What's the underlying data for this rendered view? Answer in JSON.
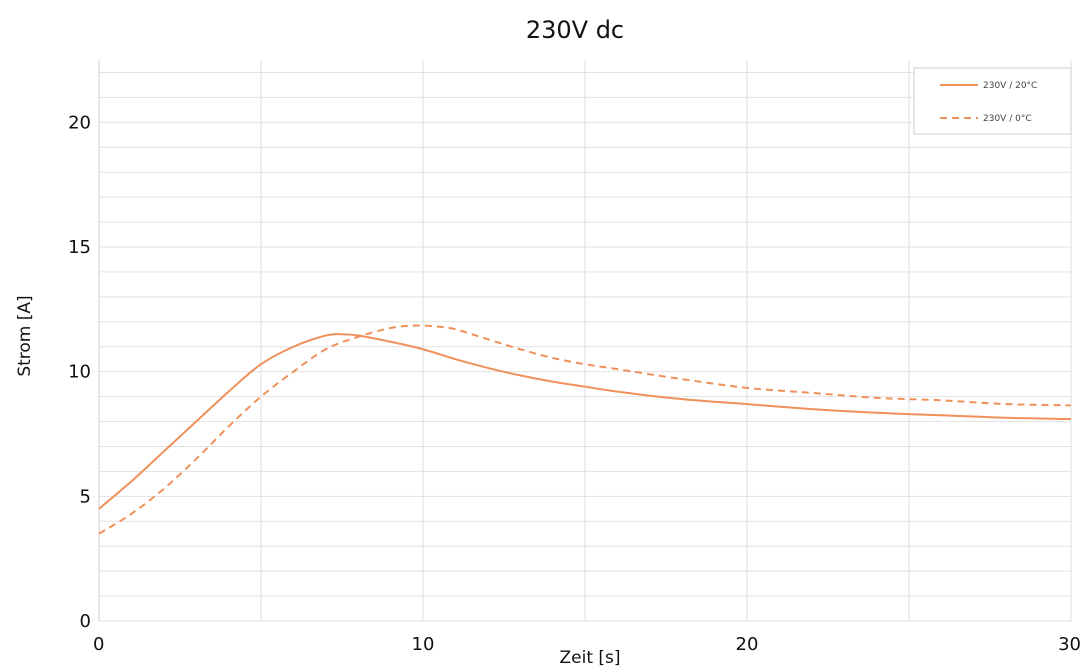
{
  "chart_data": {
    "type": "line",
    "title": "230V dc",
    "xlabel": "Zeit [s]",
    "ylabel": "Strom [A]",
    "xlim": [
      0,
      30
    ],
    "ylim": [
      0,
      22.5
    ],
    "x_ticks": [
      0,
      10,
      20,
      30
    ],
    "x_tick_labels": [
      "0",
      "10",
      "20",
      "30"
    ],
    "y_ticks": [
      0,
      5,
      10,
      15,
      20
    ],
    "y_tick_labels": [
      "0",
      "5",
      "10",
      "15",
      "20"
    ],
    "grid": true,
    "legend_position": "top-right",
    "series": [
      {
        "name": "230V / 20°C",
        "style": "solid",
        "color": "#F0905A",
        "x": [
          0,
          1,
          2,
          3,
          4,
          5,
          6,
          7,
          7.5,
          8,
          9,
          10,
          11,
          12,
          13,
          14,
          15,
          16,
          18,
          20,
          22,
          24,
          26,
          28,
          30
        ],
        "y": [
          4.5,
          5.6,
          6.8,
          8.0,
          9.2,
          10.3,
          11.0,
          11.45,
          11.5,
          11.45,
          11.2,
          10.9,
          10.5,
          10.15,
          9.85,
          9.6,
          9.4,
          9.2,
          8.9,
          8.7,
          8.5,
          8.35,
          8.25,
          8.15,
          8.1
        ]
      },
      {
        "name": "230V / 0°C",
        "style": "dashed",
        "color": "#F0905A",
        "x": [
          0,
          1,
          2,
          3,
          4,
          5,
          6,
          7,
          8,
          9,
          9.8,
          10.5,
          11,
          12,
          13,
          14,
          15,
          16,
          18,
          20,
          22,
          24,
          26,
          28,
          30
        ],
        "y": [
          3.5,
          4.3,
          5.3,
          6.5,
          7.8,
          9.0,
          10.0,
          10.9,
          11.4,
          11.75,
          11.85,
          11.8,
          11.7,
          11.3,
          10.9,
          10.55,
          10.3,
          10.1,
          9.7,
          9.35,
          9.15,
          8.95,
          8.85,
          8.7,
          8.65
        ]
      }
    ]
  }
}
